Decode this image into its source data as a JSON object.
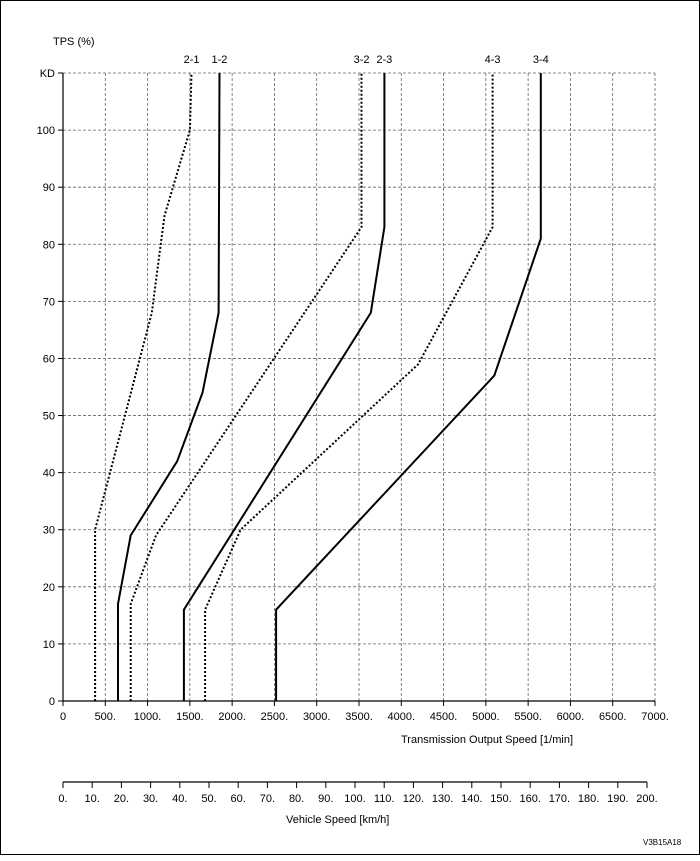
{
  "chart_data": {
    "type": "line",
    "ylabel": "TPS (%)",
    "xlabel": "Transmission Output Speed [1/min]",
    "x2label": "Vehicle Speed [km/h]",
    "xlim": [
      0,
      7000
    ],
    "ylim": [
      0,
      110
    ],
    "x2lim": [
      0,
      200
    ],
    "grid": true,
    "y_ticks": [
      {
        "value": 0,
        "label": "0"
      },
      {
        "value": 10,
        "label": "10"
      },
      {
        "value": 20,
        "label": "20"
      },
      {
        "value": 30,
        "label": "30"
      },
      {
        "value": 40,
        "label": "40"
      },
      {
        "value": 50,
        "label": "50"
      },
      {
        "value": 60,
        "label": "60"
      },
      {
        "value": 70,
        "label": "70"
      },
      {
        "value": 80,
        "label": "80"
      },
      {
        "value": 90,
        "label": "90"
      },
      {
        "value": 100,
        "label": "100"
      },
      {
        "value": 110,
        "label": "KD"
      }
    ],
    "x_ticks": [
      {
        "value": 0,
        "label": "0"
      },
      {
        "value": 500,
        "label": "500."
      },
      {
        "value": 1000,
        "label": "1000."
      },
      {
        "value": 1500,
        "label": "1500."
      },
      {
        "value": 2000,
        "label": "2000."
      },
      {
        "value": 2500,
        "label": "2500."
      },
      {
        "value": 3000,
        "label": "3000."
      },
      {
        "value": 3500,
        "label": "3500."
      },
      {
        "value": 4000,
        "label": "4000."
      },
      {
        "value": 4500,
        "label": "4500."
      },
      {
        "value": 5000,
        "label": "5000."
      },
      {
        "value": 5500,
        "label": "5500."
      },
      {
        "value": 6000,
        "label": "6000."
      },
      {
        "value": 6500,
        "label": "6500."
      },
      {
        "value": 7000,
        "label": "7000."
      }
    ],
    "x2_ticks": [
      {
        "value": 0,
        "label": "0."
      },
      {
        "value": 10,
        "label": "10."
      },
      {
        "value": 20,
        "label": "20."
      },
      {
        "value": 30,
        "label": "30."
      },
      {
        "value": 40,
        "label": "40."
      },
      {
        "value": 50,
        "label": "50."
      },
      {
        "value": 60,
        "label": "60."
      },
      {
        "value": 70,
        "label": "70."
      },
      {
        "value": 80,
        "label": "80."
      },
      {
        "value": 90,
        "label": "90."
      },
      {
        "value": 100,
        "label": "100."
      },
      {
        "value": 110,
        "label": "110."
      },
      {
        "value": 120,
        "label": "120."
      },
      {
        "value": 130,
        "label": "130."
      },
      {
        "value": 140,
        "label": "140."
      },
      {
        "value": 150,
        "label": "150."
      },
      {
        "value": 160,
        "label": "160."
      },
      {
        "value": 170,
        "label": "170."
      },
      {
        "value": 180,
        "label": "180."
      },
      {
        "value": 190,
        "label": "190."
      },
      {
        "value": 200,
        "label": "200."
      }
    ],
    "series": [
      {
        "name": "2-1",
        "style": "dotted",
        "label_x": 1520,
        "points": [
          [
            380,
            0
          ],
          [
            380,
            30
          ],
          [
            1050,
            68
          ],
          [
            1200,
            85
          ],
          [
            1500,
            100
          ],
          [
            1520,
            110
          ]
        ]
      },
      {
        "name": "1-2",
        "style": "solid",
        "label_x": 1850,
        "points": [
          [
            650,
            0
          ],
          [
            650,
            17
          ],
          [
            800,
            29
          ],
          [
            1350,
            42
          ],
          [
            1650,
            54
          ],
          [
            1840,
            68
          ],
          [
            1850,
            110
          ]
        ]
      },
      {
        "name": "3-2",
        "style": "dotted",
        "label_x": 3530,
        "points": [
          [
            800,
            0
          ],
          [
            800,
            17
          ],
          [
            1100,
            29
          ],
          [
            3530,
            83
          ],
          [
            3530,
            110
          ]
        ]
      },
      {
        "name": "2-3",
        "style": "solid",
        "label_x": 3800,
        "points": [
          [
            1430,
            0
          ],
          [
            1430,
            16
          ],
          [
            3640,
            68
          ],
          [
            3800,
            83
          ],
          [
            3800,
            110
          ]
        ]
      },
      {
        "name": "4-3",
        "style": "dotted",
        "label_x": 5080,
        "points": [
          [
            1680,
            0
          ],
          [
            1680,
            16
          ],
          [
            2100,
            30
          ],
          [
            4200,
            59
          ],
          [
            5080,
            83
          ],
          [
            5080,
            110
          ]
        ]
      },
      {
        "name": "3-4",
        "style": "solid",
        "label_x": 5650,
        "points": [
          [
            2520,
            0
          ],
          [
            2520,
            16
          ],
          [
            5100,
            57
          ],
          [
            5650,
            81
          ],
          [
            5650,
            110
          ]
        ]
      }
    ]
  },
  "figure_code": "V3B15A18"
}
